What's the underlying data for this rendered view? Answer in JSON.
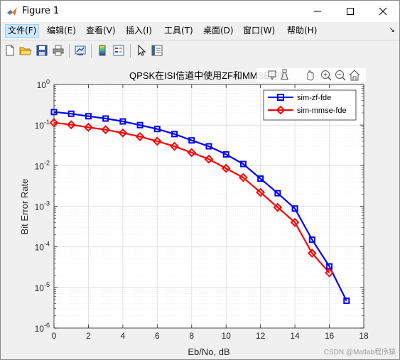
{
  "window": {
    "title": "Figure 1",
    "controls": [
      "minimize",
      "maximize",
      "close"
    ]
  },
  "menu": [
    {
      "label": "文件(F)"
    },
    {
      "label": "编辑(E)"
    },
    {
      "label": "查看(V)"
    },
    {
      "label": "插入(I)"
    },
    {
      "label": "工具(T)"
    },
    {
      "label": "桌面(D)"
    },
    {
      "label": "窗口(W)"
    },
    {
      "label": "帮助(H)"
    }
  ],
  "toolbar": [
    "new-figure-icon",
    "open-file-icon",
    "save-icon",
    "print-icon",
    "link-plot-icon",
    "colorbar-icon",
    "legend-icon",
    "edit-plot-icon",
    "property-inspector-icon"
  ],
  "axes_toolbar": [
    "data-tips-icon",
    "brush-icon",
    "pan-icon",
    "zoom-in-icon",
    "zoom-out-icon",
    "home-icon"
  ],
  "watermark": "CSDN @Matlab程序猿",
  "colors": {
    "zf": "#0000ff",
    "mmse": "#ff0000"
  },
  "chart_data": {
    "type": "line",
    "title": "QPSK在ISI信道中使用ZF和MMSE均衡",
    "xlabel": "Eb/No, dB",
    "ylabel": "Bit Error Rate",
    "xlim": [
      0,
      18
    ],
    "ylim": [
      1e-06,
      1
    ],
    "yscale": "log",
    "grid": true,
    "legend_position": "top-right",
    "x_ticks": [
      "0",
      "2",
      "4",
      "6",
      "8",
      "10",
      "12",
      "14",
      "16",
      "18"
    ],
    "y_ticks": [
      "10^-6",
      "10^-5",
      "10^-4",
      "10^-3",
      "10^-2",
      "10^-1",
      "10^0"
    ],
    "series": [
      {
        "name": "sim-zf-fde",
        "color": "#0000ff",
        "marker": "square",
        "x": [
          0,
          1,
          2,
          3,
          4,
          5,
          6,
          7,
          8,
          9,
          10,
          11,
          12,
          13,
          14,
          15,
          16,
          17
        ],
        "y": [
          0.21,
          0.19,
          0.165,
          0.145,
          0.123,
          0.1,
          0.08,
          0.06,
          0.042,
          0.03,
          0.019,
          0.011,
          0.0048,
          0.0021,
          0.00088,
          0.00015,
          3.3e-05,
          4.7e-06
        ]
      },
      {
        "name": "sim-mmse-fde",
        "color": "#ff0000",
        "marker": "diamond",
        "x": [
          0,
          1,
          2,
          3,
          4,
          5,
          6,
          7,
          8,
          9,
          10,
          11,
          12,
          13,
          14,
          15,
          16
        ],
        "y": [
          0.115,
          0.102,
          0.088,
          0.077,
          0.064,
          0.052,
          0.04,
          0.03,
          0.021,
          0.0145,
          0.0086,
          0.0051,
          0.0022,
          0.00094,
          0.0004,
          7e-05,
          2.3e-05
        ]
      }
    ]
  }
}
